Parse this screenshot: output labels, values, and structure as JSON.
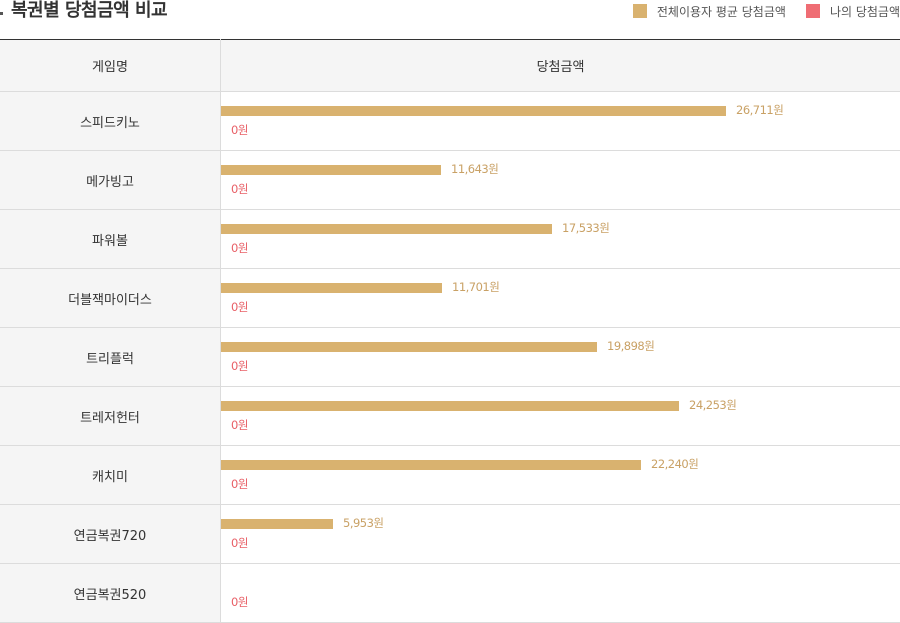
{
  "title": "복권별 당첨금액 비교",
  "legend": [
    {
      "label": "전체이용자 평균 당첨금액",
      "color": "#d9b26f"
    },
    {
      "label": "나의 당첨금액",
      "color": "#ef6d74"
    }
  ],
  "table": {
    "headers": [
      "게임명",
      "당첨금액"
    ]
  },
  "chart_data": {
    "type": "bar",
    "orientation": "horizontal",
    "title": "복권별 당첨금액 비교",
    "categories": [
      "스피드키노",
      "메가빙고",
      "파워볼",
      "더블잭마이더스",
      "트리플럭",
      "트레저헌터",
      "캐치미",
      "연금복권720",
      "연금복권520"
    ],
    "series": [
      {
        "name": "전체이용자 평균 당첨금액",
        "color": "#d9b26f",
        "values": [
          26711,
          11643,
          17533,
          11701,
          19898,
          24253,
          22240,
          5953,
          null
        ],
        "labels": [
          "26,711원",
          "11,643원",
          "17,533원",
          "11,701원",
          "19,898원",
          "24,253원",
          "22,240원",
          "5,953원",
          ""
        ]
      },
      {
        "name": "나의 당첨금액",
        "color": "#e85f66",
        "values": [
          0,
          0,
          0,
          0,
          0,
          0,
          0,
          0,
          0
        ],
        "labels": [
          "0원",
          "0원",
          "0원",
          "0원",
          "0원",
          "0원",
          "0원",
          "0원",
          "0원"
        ]
      }
    ],
    "xlim": [
      0,
      36000
    ],
    "legend_position": "top-right",
    "grid": false
  }
}
